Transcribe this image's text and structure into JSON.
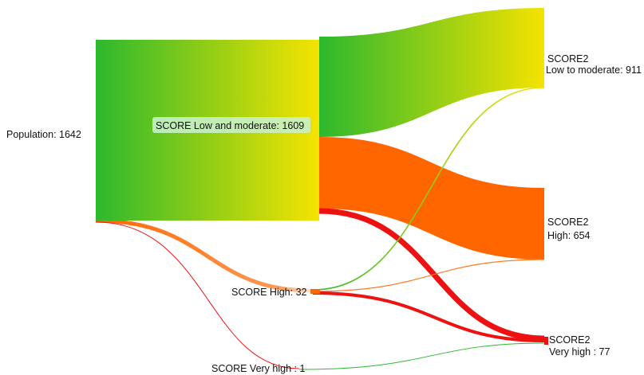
{
  "sankey": {
    "nodes": {
      "population": {
        "label": "Population: 1642",
        "value": 1642
      },
      "score_low": {
        "label": "SCORE Low and moderate: 1609",
        "value": 1609
      },
      "score_high": {
        "label": "SCORE High: 32",
        "value": 32
      },
      "score_very_high": {
        "label": "SCORE Very high : 1",
        "value": 1
      },
      "score2_low": {
        "line1": "SCORE2",
        "line2": "Low to moderate: 911",
        "value": 911
      },
      "score2_high": {
        "line1": "SCORE2",
        "line2": "High: 654",
        "value": 654
      },
      "score2_very_high": {
        "line1": "SCORE2",
        "line2": "Very high : 77",
        "value": 77
      }
    },
    "colors": {
      "green": "#2db82d",
      "yellow": "#f5e300",
      "orange": "#ff6600",
      "red": "#ee1111",
      "label_bg": "#c8f0c8"
    }
  }
}
